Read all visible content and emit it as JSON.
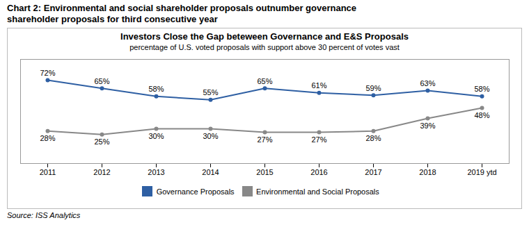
{
  "chart_data": {
    "type": "line",
    "title": "Chart 2:  Environmental and social shareholder proposals outnumber governance\nshareholder proposals for third consecutive year",
    "chart_title": "Investors Close the Gap beteween Governance and E&S Proposals",
    "subtitle": "percentage of U.S. voted proposals with support above 30 percent of votes vast",
    "source": "Source: ISS Analytics",
    "categories": [
      "2011",
      "2012",
      "2013",
      "2014",
      "2015",
      "2016",
      "2017",
      "2018",
      "2019 ytd"
    ],
    "series": [
      {
        "name": "Governance Proposals",
        "color": "#2e5fa3",
        "values": [
          72,
          65,
          58,
          55,
          65,
          61,
          59,
          63,
          58
        ],
        "value_labels": [
          "72%",
          "65%",
          "58%",
          "55%",
          "65%",
          "61%",
          "59%",
          "63%",
          "58%"
        ]
      },
      {
        "name": "Environmental and Social Proposals",
        "color": "#888888",
        "values": [
          28,
          25,
          30,
          30,
          27,
          27,
          28,
          39,
          48
        ],
        "value_labels": [
          "28%",
          "25%",
          "30%",
          "30%",
          "27%",
          "27%",
          "28%",
          "39%",
          "48%"
        ]
      }
    ],
    "ylim": [
      0,
      90
    ],
    "tick_labels": "x",
    "data_labels": true,
    "marker": "circle",
    "legend": "bottom"
  }
}
